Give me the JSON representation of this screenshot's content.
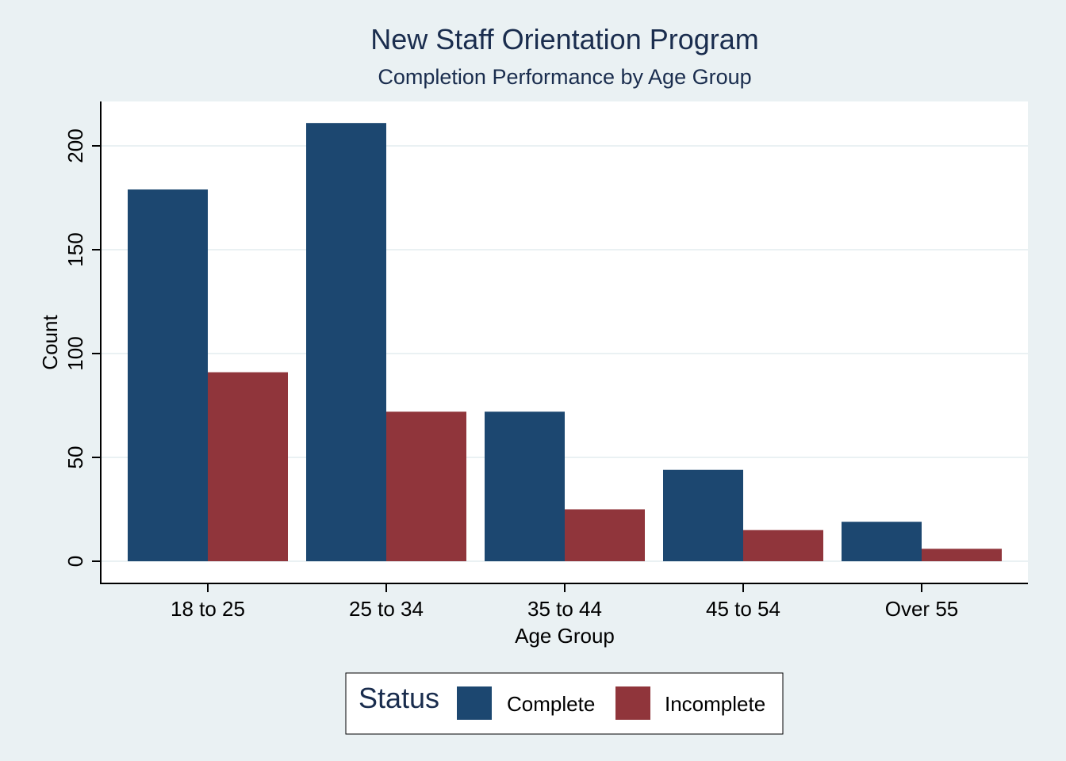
{
  "chart_data": {
    "type": "bar",
    "title": "New Staff Orientation Program",
    "subtitle": "Completion Performance by Age Group",
    "xlabel": "Age Group",
    "ylabel": "Count",
    "categories": [
      "18 to 25",
      "25 to 34",
      "35 to 44",
      "45 to 54",
      "Over 55"
    ],
    "series": [
      {
        "name": "Complete",
        "values": [
          179,
          211,
          72,
          44,
          19
        ],
        "color": "#1c4770"
      },
      {
        "name": "Incomplete",
        "values": [
          91,
          72,
          25,
          15,
          6
        ],
        "color": "#90353b"
      }
    ],
    "ylim": [
      0,
      220
    ],
    "yticks": [
      0,
      50,
      100,
      150,
      200
    ],
    "grid": true,
    "legend": {
      "title": "Status",
      "position": "bottom"
    }
  }
}
